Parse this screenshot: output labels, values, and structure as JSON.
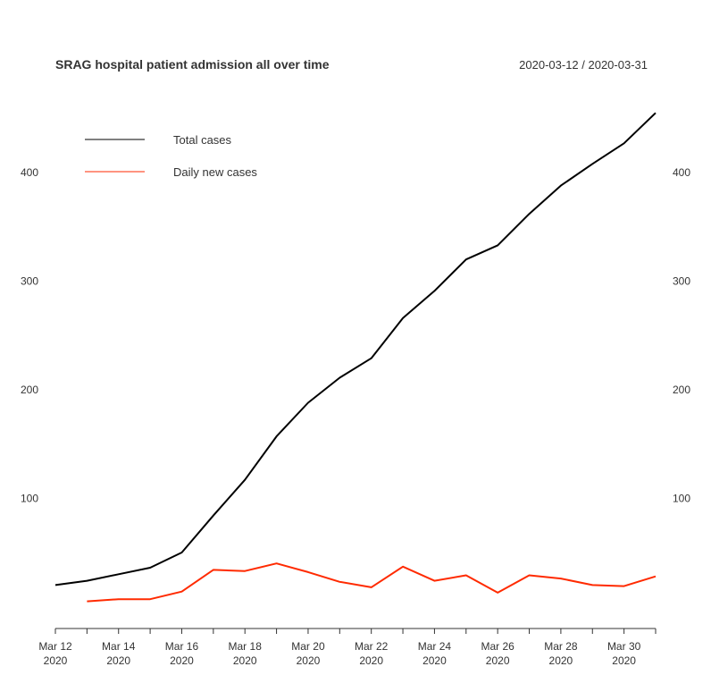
{
  "chart_data": {
    "type": "line",
    "title": "SRAG hospital patient admission all over time",
    "date_range": "2020-03-12 / 2020-03-31",
    "x": [
      "2020-03-12",
      "2020-03-13",
      "2020-03-14",
      "2020-03-15",
      "2020-03-16",
      "2020-03-17",
      "2020-03-18",
      "2020-03-19",
      "2020-03-20",
      "2020-03-21",
      "2020-03-22",
      "2020-03-23",
      "2020-03-24",
      "2020-03-25",
      "2020-03-26",
      "2020-03-27",
      "2020-03-28",
      "2020-03-29",
      "2020-03-30",
      "2020-03-31"
    ],
    "x_tick_labels": [
      {
        "month": "Mar 12",
        "year": "2020"
      },
      {
        "month": "Mar 14",
        "year": "2020"
      },
      {
        "month": "Mar 16",
        "year": "2020"
      },
      {
        "month": "Mar 18",
        "year": "2020"
      },
      {
        "month": "Mar 20",
        "year": "2020"
      },
      {
        "month": "Mar 22",
        "year": "2020"
      },
      {
        "month": "Mar 24",
        "year": "2020"
      },
      {
        "month": "Mar 26",
        "year": "2020"
      },
      {
        "month": "Mar 28",
        "year": "2020"
      },
      {
        "month": "Mar 30",
        "year": "2020"
      }
    ],
    "y_ticks": [
      100,
      200,
      300,
      400
    ],
    "y_tick_labels": [
      "100",
      "200",
      "300",
      "400"
    ],
    "ylim": [
      -20,
      461
    ],
    "grid": false,
    "legend_position": "top-left",
    "series": [
      {
        "name": "Total cases",
        "color": "#000000",
        "values": [
          20,
          24,
          30,
          36,
          50,
          84,
          117,
          157,
          188,
          211,
          229,
          266,
          291,
          320,
          333,
          362,
          388,
          408,
          427,
          455
        ]
      },
      {
        "name": "Daily new cases",
        "color": "#ff2a00",
        "values": [
          null,
          5,
          7,
          7,
          14,
          34,
          33,
          40,
          32,
          23,
          18,
          37,
          24,
          29,
          13,
          29,
          26,
          20,
          19,
          28
        ]
      }
    ]
  }
}
